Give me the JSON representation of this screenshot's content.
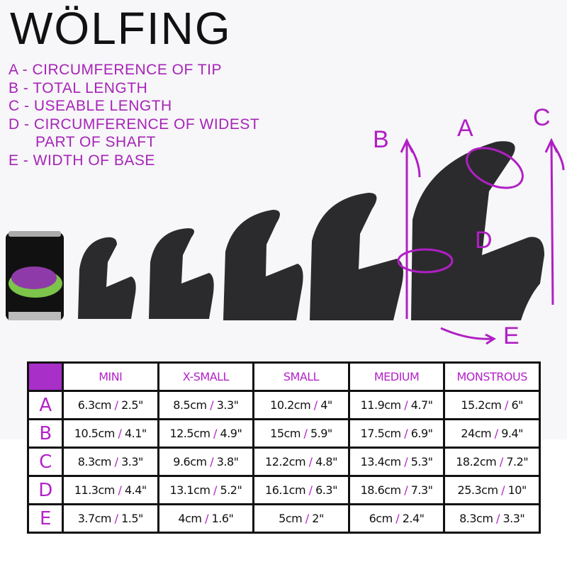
{
  "title": "WÖLFING",
  "legend": [
    "A - CIRCUMFERENCE OF TIP",
    "B - TOTAL LENGTH",
    "C - USEABLE LENGTH",
    "D - CIRCUMFERENCE OF WIDEST",
    "PART OF SHAFT",
    "E - WIDTH OF BASE"
  ],
  "markers": {
    "a": "A",
    "b": "B",
    "c": "C",
    "d": "D",
    "e": "E"
  },
  "colors": {
    "accent": "#a82fc8",
    "product": "#2a2a2c"
  },
  "table": {
    "columns": [
      "MINI",
      "X-SMALL",
      "SMALL",
      "MEDIUM",
      "MONSTROUS"
    ],
    "slash": "/",
    "rows": [
      {
        "label": "A",
        "cells": [
          {
            "cm": "6.3cm",
            "in": "2.5\""
          },
          {
            "cm": "8.5cm",
            "in": "3.3\""
          },
          {
            "cm": "10.2cm",
            "in": "4\""
          },
          {
            "cm": "11.9cm",
            "in": "4.7\""
          },
          {
            "cm": "15.2cm",
            "in": "6\""
          }
        ]
      },
      {
        "label": "B",
        "cells": [
          {
            "cm": "10.5cm",
            "in": "4.1\""
          },
          {
            "cm": "12.5cm",
            "in": "4.9\""
          },
          {
            "cm": "15cm",
            "in": "5.9\""
          },
          {
            "cm": "17.5cm",
            "in": "6.9\""
          },
          {
            "cm": "24cm",
            "in": "9.4\""
          }
        ]
      },
      {
        "label": "C",
        "cells": [
          {
            "cm": "8.3cm",
            "in": "3.3\""
          },
          {
            "cm": "9.6cm",
            "in": "3.8\""
          },
          {
            "cm": "12.2cm",
            "in": "4.8\""
          },
          {
            "cm": "13.4cm",
            "in": "5.3\""
          },
          {
            "cm": "18.2cm",
            "in": "7.2\""
          }
        ]
      },
      {
        "label": "D",
        "cells": [
          {
            "cm": "11.3cm",
            "in": "4.4\""
          },
          {
            "cm": "13.1cm",
            "in": "5.2\""
          },
          {
            "cm": "16.1cm",
            "in": "6.3\""
          },
          {
            "cm": "18.6cm",
            "in": "7.3\""
          },
          {
            "cm": "25.3cm",
            "in": "10\""
          }
        ]
      },
      {
        "label": "E",
        "cells": [
          {
            "cm": "3.7cm",
            "in": "1.5\""
          },
          {
            "cm": "4cm",
            "in": "1.6\""
          },
          {
            "cm": "5cm",
            "in": "2\""
          },
          {
            "cm": "6cm",
            "in": "2.4\""
          },
          {
            "cm": "8.3cm",
            "in": "3.3\""
          }
        ]
      }
    ]
  }
}
